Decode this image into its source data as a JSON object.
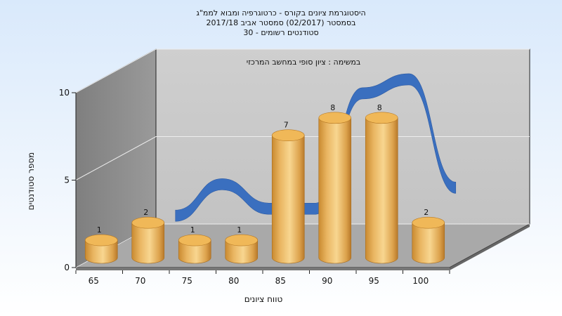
{
  "chart_data": {
    "type": "bar",
    "title": [
      "היסטוגרמת ציונים בקורס - כרטוגרפיה ומבוא לממ\"ג",
      "בסמסטר  (02/2017)  סמסטר אביב 2017/18",
      "סטודנטים רשומים - 30"
    ],
    "annotation": "במשימה : ציון סופי במחשב המרכזי",
    "xlabel": "טווח ציונים",
    "ylabel": "מספר סטודנטים",
    "categories": [
      "65",
      "70",
      "75",
      "80",
      "85",
      "90",
      "95",
      "100"
    ],
    "values": [
      1,
      2,
      1,
      1,
      7,
      8,
      8,
      2
    ],
    "bar_labels": [
      "1",
      "2",
      "1",
      "1",
      "7",
      "8",
      "8",
      "2"
    ],
    "ylim": [
      0,
      10
    ],
    "yticks": [
      0,
      5,
      10
    ],
    "ribbon_values": [
      null,
      2,
      3.8,
      2.4,
      2.4,
      9,
      9.8,
      3.6
    ],
    "grid": true,
    "style": "3d-cylinder",
    "colors": {
      "bar_light": "#f6cf82",
      "bar_mid": "#e2a84f",
      "bar_dark": "#b67a24",
      "bar_top": "#f0b858",
      "ribbon": "#3a6fbf",
      "wall": "#c9c9c9",
      "side_wall": "#8f8f8f",
      "floor": "#a9a9a9"
    }
  }
}
